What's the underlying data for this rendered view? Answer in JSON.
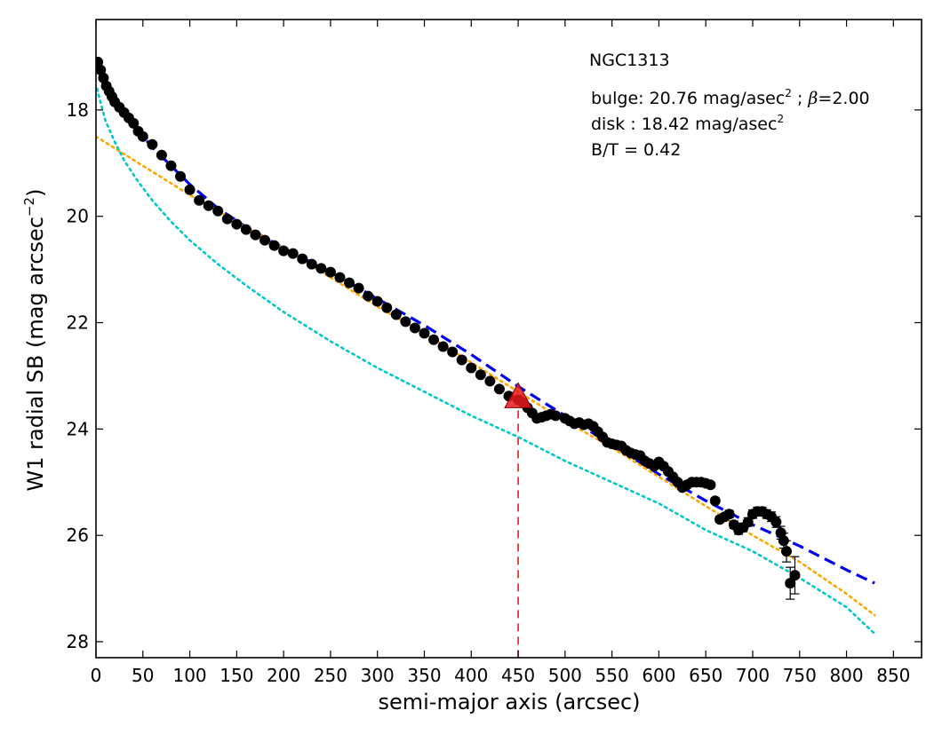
{
  "chart_data": {
    "type": "scatter",
    "title": "NGC1313",
    "xlabel": "semi-major axis (arcsec)",
    "ylabel": "W1 radial SB (mag arcsec",
    "ylabel_sup": "−2",
    "ylabel_close": ")",
    "xlim": [
      0,
      880
    ],
    "ylim": [
      28.3,
      16.3
    ],
    "y_inverted": true,
    "xticks": [
      0,
      50,
      100,
      150,
      200,
      250,
      300,
      350,
      400,
      450,
      500,
      550,
      600,
      650,
      700,
      750,
      800,
      850
    ],
    "yticks": [
      18,
      20,
      22,
      24,
      26,
      28
    ],
    "grid": false,
    "annotations": {
      "bulge_prefix": "bulge: 20.76 mag/asec",
      "bulge_sup": "2",
      "bulge_mid": " ; ",
      "bulge_beta": "β",
      "bulge_beta_val": "=2.00",
      "disk_prefix": "disk  : 18.42 mag/asec",
      "disk_sup": "2",
      "bt": "B/T = 0.42"
    },
    "marker": {
      "x": 450,
      "y": 23.4,
      "color": "#e8191c"
    },
    "vline_x": 450,
    "series": [
      {
        "style": "points",
        "color": "#000000",
        "x": [
          2,
          5,
          8,
          11,
          14,
          17,
          20,
          25,
          30,
          35,
          40,
          45,
          50,
          60,
          70,
          80,
          90,
          100,
          110,
          120,
          130,
          140,
          150,
          160,
          170,
          180,
          190,
          200,
          210,
          220,
          230,
          240,
          250,
          260,
          270,
          280,
          290,
          300,
          310,
          320,
          330,
          340,
          350,
          360,
          370,
          380,
          390,
          400,
          410,
          420,
          430,
          440,
          450,
          455,
          460,
          465,
          470,
          475,
          480,
          485,
          490,
          500,
          505,
          510,
          515,
          520,
          525,
          530,
          535,
          540,
          545,
          550,
          555,
          560,
          565,
          570,
          575,
          580,
          585,
          590,
          595,
          600,
          605,
          610,
          615,
          620,
          625,
          630,
          635,
          640,
          645,
          650,
          655,
          660,
          665,
          670,
          675,
          680,
          685,
          690,
          695,
          700,
          705,
          710,
          715,
          720,
          725,
          730,
          733,
          736,
          740,
          745
        ],
        "y": [
          17.1,
          17.25,
          17.4,
          17.55,
          17.65,
          17.75,
          17.85,
          17.95,
          18.05,
          18.15,
          18.25,
          18.4,
          18.5,
          18.65,
          18.85,
          19.05,
          19.25,
          19.5,
          19.7,
          19.8,
          19.9,
          20.05,
          20.15,
          20.25,
          20.35,
          20.45,
          20.55,
          20.65,
          20.7,
          20.8,
          20.9,
          20.98,
          21.05,
          21.15,
          21.25,
          21.35,
          21.5,
          21.6,
          21.72,
          21.85,
          21.98,
          22.1,
          22.2,
          22.32,
          22.45,
          22.55,
          22.7,
          22.85,
          22.98,
          23.1,
          23.25,
          23.38,
          23.45,
          23.5,
          23.6,
          23.7,
          23.8,
          23.78,
          23.75,
          23.72,
          23.75,
          23.8,
          23.85,
          23.9,
          23.88,
          23.92,
          23.9,
          23.95,
          24.05,
          24.15,
          24.25,
          24.28,
          24.3,
          24.32,
          24.4,
          24.45,
          24.48,
          24.5,
          24.6,
          24.65,
          24.7,
          24.62,
          24.7,
          24.8,
          24.9,
          25.0,
          25.1,
          25.05,
          25.0,
          25.0,
          25.0,
          25.02,
          25.05,
          25.35,
          25.7,
          25.65,
          25.6,
          25.8,
          25.9,
          25.85,
          25.75,
          25.6,
          25.55,
          25.55,
          25.6,
          25.65,
          25.75,
          25.95,
          26.1,
          26.3,
          26.9,
          26.75
        ],
        "yerr": [
          0,
          0,
          0,
          0,
          0,
          0,
          0,
          0,
          0,
          0,
          0,
          0,
          0,
          0,
          0,
          0,
          0,
          0,
          0,
          0,
          0,
          0,
          0,
          0,
          0,
          0,
          0,
          0,
          0,
          0,
          0,
          0,
          0,
          0,
          0,
          0,
          0,
          0,
          0,
          0,
          0,
          0,
          0,
          0,
          0,
          0,
          0,
          0,
          0,
          0,
          0,
          0,
          0,
          0,
          0,
          0,
          0,
          0,
          0,
          0,
          0,
          0,
          0,
          0,
          0,
          0,
          0,
          0,
          0,
          0,
          0,
          0,
          0,
          0,
          0,
          0,
          0,
          0,
          0,
          0,
          0,
          0,
          0,
          0,
          0,
          0,
          0,
          0,
          0,
          0,
          0,
          0,
          0,
          0,
          0.06,
          0.06,
          0.07,
          0.07,
          0.08,
          0.08,
          0.08,
          0.08,
          0.08,
          0.08,
          0.08,
          0.09,
          0.1,
          0.12,
          0.14,
          0.2,
          0.3,
          0.35
        ]
      },
      {
        "style": "dashed",
        "color": "#0000ee",
        "x": [
          2,
          10,
          20,
          30,
          40,
          60,
          80,
          100,
          130,
          160,
          200,
          250,
          300,
          350,
          400,
          450,
          500,
          550,
          600,
          650,
          700,
          750,
          800,
          830
        ],
        "y": [
          17.2,
          17.5,
          17.8,
          18.05,
          18.3,
          18.7,
          19.05,
          19.4,
          19.85,
          20.2,
          20.6,
          21.05,
          21.55,
          22.05,
          22.6,
          23.2,
          23.75,
          24.3,
          24.85,
          25.35,
          25.8,
          26.2,
          26.65,
          26.9
        ]
      },
      {
        "style": "dotted",
        "color": "#ffa500",
        "x": [
          0,
          50,
          100,
          150,
          200,
          250,
          300,
          350,
          400,
          450,
          500,
          550,
          600,
          650,
          700,
          750,
          800,
          830
        ],
        "y": [
          18.5,
          19.05,
          19.6,
          20.1,
          20.6,
          21.15,
          21.7,
          22.2,
          22.75,
          23.3,
          23.85,
          24.35,
          24.9,
          25.45,
          26.0,
          26.5,
          27.1,
          27.5
        ]
      },
      {
        "style": "dotted",
        "color": "#00c8c8",
        "x": [
          1,
          10,
          20,
          30,
          45,
          60,
          80,
          100,
          130,
          160,
          200,
          250,
          300,
          350,
          400,
          450,
          500,
          550,
          600,
          650,
          700,
          750,
          800,
          830
        ],
        "y": [
          17.6,
          18.2,
          18.6,
          18.95,
          19.35,
          19.7,
          20.1,
          20.45,
          20.9,
          21.3,
          21.8,
          22.35,
          22.85,
          23.3,
          23.75,
          24.15,
          24.6,
          25.0,
          25.4,
          25.9,
          26.3,
          26.8,
          27.35,
          27.85
        ]
      }
    ]
  }
}
